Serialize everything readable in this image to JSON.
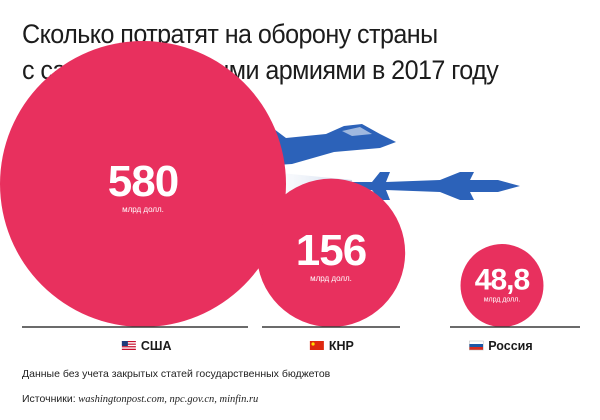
{
  "title_line1": "Сколько потратят на оборону страны",
  "title_line2": "с самыми развитыми армиями в 2017 году",
  "note": "Данные без учета закрытых статей государственных бюджетов",
  "sources_label": "Источники:",
  "sources_text": "washingtonpost.com, npc.gov.cn, minfin.ru",
  "colors": {
    "bubble": "#e8305e",
    "axis": "#3a3a3a",
    "aircraft": "#2c62b9",
    "trail": "#dbe4f2",
    "text": "#1a1a1a"
  },
  "chart_data": {
    "type": "bubble",
    "unit": "млрд долл.",
    "categories": [
      "США",
      "КНР",
      "Россия"
    ],
    "values": [
      580,
      156,
      48.8
    ],
    "value_labels": [
      "580",
      "156",
      "48,8"
    ],
    "flags": [
      "us-flag",
      "cn-flag",
      "ru-flag"
    ]
  }
}
